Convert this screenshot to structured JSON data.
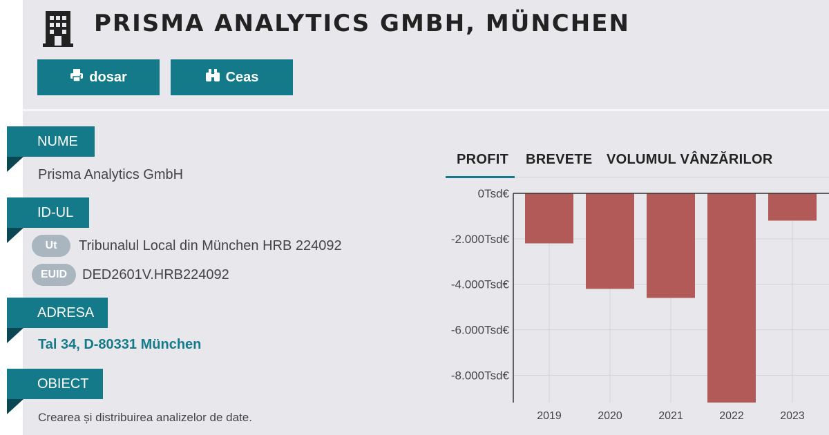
{
  "header": {
    "title": "PRISMA ANALYTICS GMBH, MÜNCHEN",
    "icon": "building-icon"
  },
  "actions": {
    "dosar_label": "dosar",
    "ceas_label": "Ceas"
  },
  "sections": {
    "name": {
      "label": "NUME",
      "value": "Prisma Analytics GmbH"
    },
    "ids": {
      "label": "ID-UL",
      "items": [
        {
          "badge": "Ut",
          "value": "Tribunalul Local din München HRB 224092"
        },
        {
          "badge": "EUID",
          "value": "DED2601V.HRB224092"
        }
      ]
    },
    "address": {
      "label": "ADRESA",
      "value": "Tal 34, D-80331 München"
    },
    "purpose": {
      "label": "OBIECT",
      "value": "Crearea și distribuirea analizelor de date."
    }
  },
  "tabs": [
    {
      "label": "PROFIT",
      "active": true
    },
    {
      "label": "BREVETE",
      "active": false
    },
    {
      "label": "VOLUMUL VÂNZĂRILOR",
      "active": false
    }
  ],
  "colors": {
    "accent": "#147a8a",
    "bar": "#b25a58",
    "badge": "#a9b6bf",
    "background": "#e8e8ec"
  },
  "chart_data": {
    "type": "bar",
    "categories": [
      "2019",
      "2020",
      "2021",
      "2022",
      "2023"
    ],
    "values": [
      -2200,
      -4200,
      -4600,
      -9200,
      -1200
    ],
    "unit": "Tsd€",
    "yticks": [
      "0Tsd€",
      "-2.000Tsd€",
      "-4.000Tsd€",
      "-6.000Tsd€",
      "-8.000Tsd€"
    ],
    "ytick_values": [
      0,
      -2000,
      -4000,
      -6000,
      -8000
    ],
    "ylim": [
      -9200,
      0
    ],
    "grid": true
  }
}
